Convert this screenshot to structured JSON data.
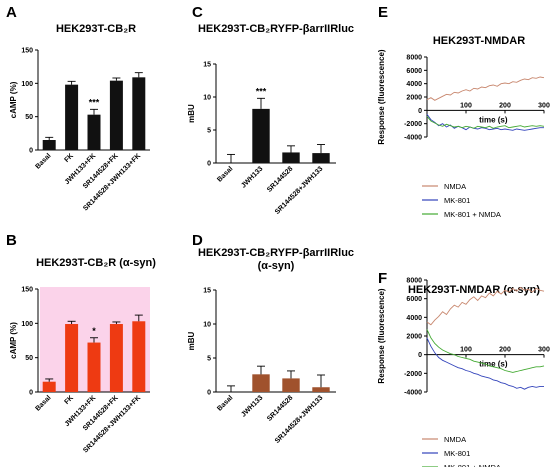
{
  "chart_data": [
    {
      "panel": "A",
      "type": "bar",
      "title": "HEK293T-CB₂R",
      "ylabel": "cAMP (%)",
      "ylim": [
        0,
        150
      ],
      "yticks": [
        0,
        50,
        100,
        150
      ],
      "categories": [
        "Basal",
        "FK",
        "JWH133+FK",
        "SR144528+FK",
        "SR144528+JWH133+FK"
      ],
      "values": [
        15,
        98,
        53,
        104,
        109
      ],
      "errors": [
        4,
        5,
        8,
        4,
        7
      ],
      "annotations": [
        {
          "index": 2,
          "text": "***"
        }
      ],
      "bar_color": "#111111",
      "highlight": false
    },
    {
      "panel": "B",
      "type": "bar",
      "title": "HEK293T-CB₂R (α-syn)",
      "ylabel": "cAMP (%)",
      "ylim": [
        0,
        150
      ],
      "yticks": [
        0,
        50,
        100,
        150
      ],
      "categories": [
        "Basal",
        "FK",
        "JWH133+FK",
        "SR144528+FK",
        "SR144528+JWH133+FK"
      ],
      "values": [
        15,
        99,
        72,
        99,
        103
      ],
      "errors": [
        4,
        4,
        7,
        3,
        9
      ],
      "annotations": [
        {
          "index": 2,
          "text": "*"
        }
      ],
      "bar_color": "#ee3a12",
      "highlight": true
    },
    {
      "panel": "C",
      "type": "bar",
      "title": "HEK293T-CB₂RYFP-βarrIIRluc",
      "ylabel": "mBU",
      "ylim": [
        0,
        15
      ],
      "yticks": [
        0,
        5,
        10,
        15
      ],
      "categories": [
        "Basal",
        "JWH133",
        "SR144528",
        "SR144528+JWH133"
      ],
      "values": [
        0,
        8.2,
        1.6,
        1.5
      ],
      "errors": [
        1.3,
        1.6,
        1.0,
        1.3
      ],
      "annotations": [
        {
          "index": 1,
          "text": "***"
        }
      ],
      "bar_color": "#111111",
      "highlight": false
    },
    {
      "panel": "D",
      "type": "bar",
      "title": "HEK293T-CB₂RYFP-βarrIIRluc\n(α-syn)",
      "ylabel": "mBU",
      "ylim": [
        0,
        15
      ],
      "yticks": [
        0,
        5,
        10,
        15
      ],
      "categories": [
        "Basal",
        "JWH133",
        "SR144528",
        "SR144528+JWH133"
      ],
      "values": [
        0,
        2.6,
        2.0,
        0.7
      ],
      "errors": [
        0.9,
        1.2,
        1.1,
        1.8
      ],
      "annotations": [],
      "bar_color": "#a0522d",
      "highlight": false
    },
    {
      "panel": "E",
      "type": "line",
      "title": "HEK293T-NMDAR",
      "xlabel": "time (s)",
      "ylabel": "Response (fluorescence)",
      "xlim": [
        0,
        300
      ],
      "ylim": [
        -4000,
        8000
      ],
      "xticks": [
        100,
        200,
        300
      ],
      "yticks": [
        -4000,
        -2000,
        0,
        2000,
        4000,
        6000,
        8000
      ],
      "series": [
        {
          "name": "NMDA",
          "color": "#c8876e",
          "x": [
            0,
            10,
            20,
            30,
            40,
            50,
            60,
            70,
            80,
            90,
            100,
            110,
            120,
            130,
            140,
            150,
            160,
            170,
            180,
            190,
            200,
            210,
            220,
            230,
            240,
            250,
            260,
            270,
            280,
            290,
            300
          ],
          "y": [
            1600,
            1900,
            1500,
            1800,
            2100,
            2400,
            2300,
            2700,
            2600,
            2900,
            3100,
            2900,
            3300,
            3200,
            3500,
            3400,
            3700,
            3800,
            3600,
            4000,
            4100,
            4000,
            4300,
            4200,
            4500,
            4700,
            4600,
            4900,
            4800,
            5000,
            4900
          ]
        },
        {
          "name": "MK-801",
          "color": "#3344bb",
          "x": [
            0,
            10,
            20,
            30,
            40,
            50,
            60,
            70,
            80,
            90,
            100,
            110,
            120,
            130,
            140,
            150,
            160,
            170,
            180,
            190,
            200,
            210,
            220,
            230,
            240,
            250,
            260,
            270,
            280,
            290,
            300
          ],
          "y": [
            -600,
            -1400,
            -1800,
            -2300,
            -2000,
            -2500,
            -2200,
            -2700,
            -2400,
            -2600,
            -2900,
            -2500,
            -2700,
            -2800,
            -2600,
            -2700,
            -2900,
            -2800,
            -2700,
            -2900,
            -2800,
            -2900,
            -3000,
            -2800,
            -2900,
            -3000,
            -2900,
            -2800,
            -2700,
            -2600,
            -2600
          ]
        },
        {
          "name": "MK-801 + NMDA",
          "color": "#44aa33",
          "x": [
            0,
            10,
            20,
            30,
            40,
            50,
            60,
            70,
            80,
            90,
            100,
            110,
            120,
            130,
            140,
            150,
            160,
            170,
            180,
            190,
            200,
            210,
            220,
            230,
            240,
            250,
            260,
            270,
            280,
            290,
            300
          ],
          "y": [
            -900,
            -1600,
            -1900,
            -2200,
            -2400,
            -2100,
            -2300,
            -2500,
            -2400,
            -2600,
            -2400,
            -2500,
            -2700,
            -2400,
            -2500,
            -2600,
            -2400,
            -2700,
            -2500,
            -2400,
            -2300,
            -2600,
            -2500,
            -2400,
            -2300,
            -2500,
            -2400,
            -2300,
            -2400,
            -2300,
            -2400
          ]
        }
      ]
    },
    {
      "panel": "F",
      "type": "line",
      "title": "HEK293T-NMDAR (α-syn)",
      "xlabel": "time (s)",
      "ylabel": "Response (fluorescence)",
      "xlim": [
        0,
        300
      ],
      "ylim": [
        -4000,
        8000
      ],
      "xticks": [
        100,
        200,
        300
      ],
      "yticks": [
        -4000,
        -2000,
        0,
        2000,
        4000,
        6000,
        8000
      ],
      "series": [
        {
          "name": "NMDA",
          "color": "#c8876e",
          "x": [
            0,
            10,
            20,
            30,
            40,
            50,
            60,
            70,
            80,
            90,
            100,
            110,
            120,
            130,
            140,
            150,
            160,
            170,
            180,
            190,
            200,
            210,
            220,
            230,
            240,
            250,
            260,
            270,
            280,
            290,
            300
          ],
          "y": [
            3500,
            3200,
            3700,
            4100,
            4600,
            4300,
            4900,
            5300,
            5100,
            5600,
            5400,
            5900,
            6200,
            5800,
            6300,
            6100,
            6600,
            6300,
            6800,
            6500,
            6900,
            6700,
            7100,
            6800,
            7200,
            6900,
            7000,
            6700,
            7100,
            6900,
            6800
          ]
        },
        {
          "name": "MK-801",
          "color": "#3344bb",
          "x": [
            0,
            10,
            20,
            30,
            40,
            50,
            60,
            70,
            80,
            90,
            100,
            110,
            120,
            130,
            140,
            150,
            160,
            170,
            180,
            190,
            200,
            210,
            220,
            230,
            240,
            250,
            260,
            270,
            280,
            290,
            300
          ],
          "y": [
            1800,
            900,
            200,
            -300,
            -600,
            -800,
            -1000,
            -1200,
            -1400,
            -1500,
            -1700,
            -1800,
            -2000,
            -2100,
            -2300,
            -2400,
            -2500,
            -2700,
            -2800,
            -3000,
            -3100,
            -3300,
            -3400,
            -3600,
            -3500,
            -3700,
            -3500,
            -3400,
            -3500,
            -3400,
            -3400
          ]
        },
        {
          "name": "MK-801 + NMDA",
          "color": "#44aa33",
          "x": [
            0,
            10,
            20,
            30,
            40,
            50,
            60,
            70,
            80,
            90,
            100,
            110,
            120,
            130,
            140,
            150,
            160,
            170,
            180,
            190,
            200,
            210,
            220,
            230,
            240,
            250,
            260,
            270,
            280,
            290,
            300
          ],
          "y": [
            2700,
            1800,
            1200,
            800,
            500,
            300,
            100,
            0,
            -200,
            -300,
            -400,
            -500,
            -700,
            -800,
            -900,
            -1000,
            -1200,
            -1300,
            -1400,
            -1500,
            -1700,
            -1800,
            -1900,
            -1800,
            -1700,
            -1600,
            -1500,
            -1400,
            -1300,
            -1300,
            -1200
          ]
        }
      ]
    }
  ]
}
